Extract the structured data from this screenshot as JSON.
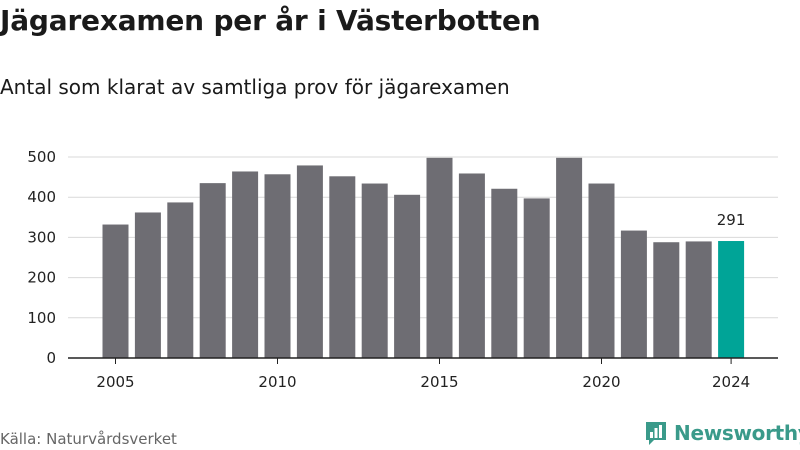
{
  "title": "Jägarexamen per år i Västerbotten",
  "subtitle": "Antal som klarat av samtliga prov för jägarexamen",
  "source": "Källa: Naturvårdsverket",
  "brand": {
    "name": "Newsworthy",
    "icon": "newsworthy-chart-logo-icon",
    "color": "#3a9a8a"
  },
  "colors": {
    "bar": "#6e6d73",
    "highlight": "#00a497",
    "grid": "#d9d9d9",
    "axis": "#222222"
  },
  "chart_data": {
    "type": "bar",
    "title": "Jägarexamen per år i Västerbotten",
    "subtitle": "Antal som klarat av samtliga prov för jägarexamen",
    "xlabel": "",
    "ylabel": "",
    "ylim": [
      0,
      500
    ],
    "yticks": [
      0,
      100,
      200,
      300,
      400,
      500
    ],
    "xticks": [
      2005,
      2010,
      2015,
      2020,
      2024
    ],
    "grid": true,
    "categories": [
      2005,
      2006,
      2007,
      2008,
      2009,
      2010,
      2011,
      2012,
      2013,
      2014,
      2015,
      2016,
      2017,
      2018,
      2019,
      2020,
      2021,
      2022,
      2023,
      2024
    ],
    "values": [
      332,
      362,
      387,
      435,
      464,
      457,
      479,
      452,
      434,
      406,
      498,
      459,
      421,
      397,
      498,
      434,
      317,
      288,
      290,
      291
    ],
    "highlight": {
      "category": 2024,
      "label": "291"
    }
  }
}
